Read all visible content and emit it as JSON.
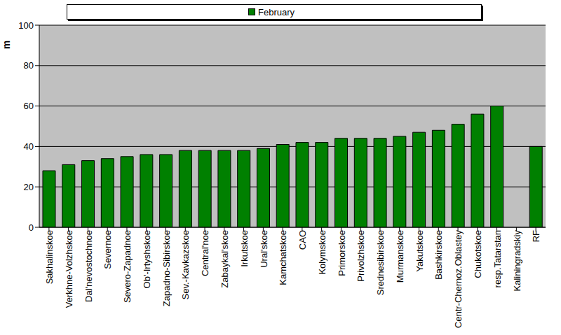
{
  "chart_data": {
    "type": "bar",
    "categories": [
      "Sakhalinskoe",
      "Verkhne-Volzhskoe",
      "Dal'nevostochnoe",
      "Severnoe",
      "Severo-Zapadnoe",
      "Ob'-Irtyshskoe",
      "Zapadno-Sibirskoe",
      "Sev.-Kavkazskoe",
      "Central'noe",
      "Zabaykal'skoe",
      "Irkutskoe",
      "Ural'skoe",
      "Kamchatskoe",
      "CAO",
      "Kolymskoe",
      "Primorskoe",
      "Privolzhskoe",
      "Srednesibirskoe",
      "Murmanskoe",
      "Yakutskoe",
      "Bashkirskoe",
      "Centr-Chernoz.Oblastey",
      "Chukotskoe",
      "resp.Tatarstan",
      "Kaliningradskiy",
      "RF"
    ],
    "series": [
      {
        "name": "February",
        "color": "#008000",
        "values": [
          28,
          31,
          33,
          34,
          35,
          36,
          36,
          38,
          38,
          38,
          38,
          39,
          41,
          42,
          42,
          44,
          44,
          44,
          45,
          47,
          48,
          51,
          56,
          60,
          null,
          40
        ]
      }
    ],
    "ylabel": "m",
    "ylim": [
      0,
      100
    ],
    "yticks": [
      0,
      20,
      40,
      60,
      80,
      100
    ],
    "grid": true,
    "legend": "top"
  }
}
